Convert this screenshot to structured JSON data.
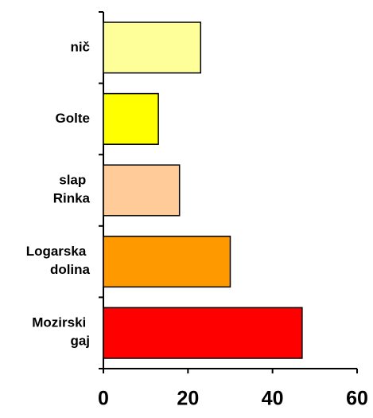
{
  "chart_data": {
    "type": "bar",
    "orientation": "horizontal",
    "categories": [
      "nič",
      "Golte",
      "slap Rinka",
      "Logarska dolina",
      "Mozirski gaj"
    ],
    "values": [
      23,
      13,
      18,
      30,
      47
    ],
    "colors": [
      "#FFFF99",
      "#FFFF00",
      "#FFCC99",
      "#FF9900",
      "#FF0000"
    ],
    "xlim": [
      0,
      60
    ],
    "xticks": [
      0,
      20,
      40,
      60
    ],
    "grid": false
  }
}
